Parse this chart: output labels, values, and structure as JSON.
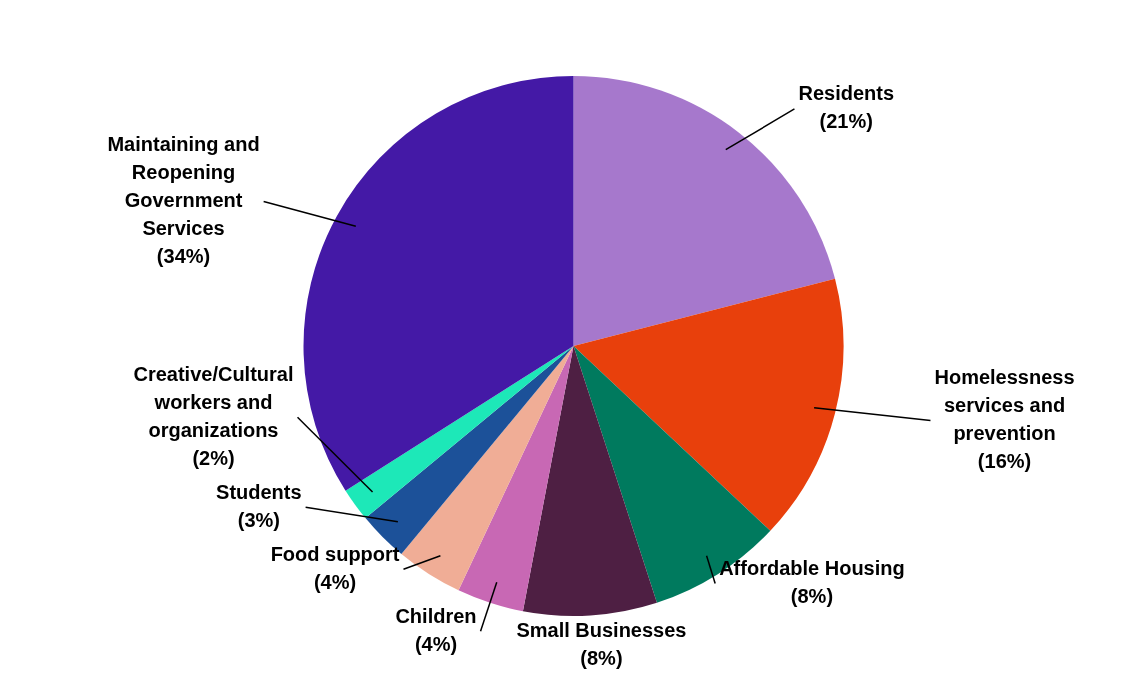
{
  "chart_data": {
    "type": "pie",
    "categories": [
      "Residents",
      "Homelessness services and prevention",
      "Affordable Housing",
      "Small Businesses",
      "Children",
      "Food support",
      "Students",
      "Creative/Cultural workers and organizations",
      "Maintaining and Reopening Government Services"
    ],
    "values": [
      21,
      16,
      8,
      8,
      4,
      4,
      3,
      2,
      34
    ],
    "colors": [
      "#a678cc",
      "#e8400c",
      "#007a5e",
      "#4e1f43",
      "#c868b4",
      "#f0ad96",
      "#1c5199",
      "#1de8b8",
      "#4419a6"
    ],
    "value_labels": [
      "(21%)",
      "(16%)",
      "(8%)",
      "(8%)",
      "(4%)",
      "(4%)",
      "(3%)",
      "(2%)",
      "(34%)"
    ]
  }
}
